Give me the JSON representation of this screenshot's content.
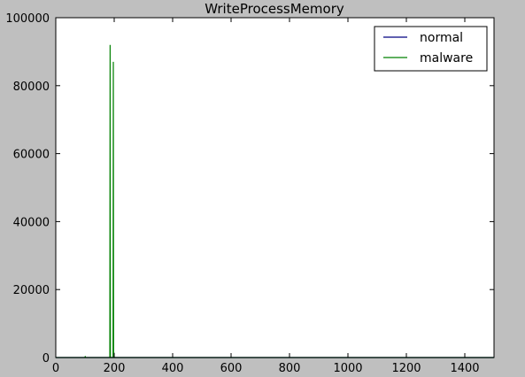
{
  "colors": {
    "background": "#bfbfbf",
    "plot_background": "#ffffff",
    "normal": "#000080",
    "malware": "#008000"
  },
  "chart_data": {
    "type": "line",
    "title": "WriteProcessMemory",
    "xlabel": "",
    "ylabel": "",
    "xlim": [
      0,
      1500
    ],
    "ylim": [
      0,
      100000
    ],
    "xticks": [
      0,
      200,
      400,
      600,
      800,
      1000,
      1200,
      1400
    ],
    "yticks": [
      0,
      20000,
      40000,
      60000,
      80000,
      100000
    ],
    "xtick_labels": [
      "0",
      "200",
      "400",
      "600",
      "800",
      "1000",
      "1200",
      "1400"
    ],
    "ytick_labels": [
      "0",
      "20000",
      "40000",
      "60000",
      "80000",
      "100000"
    ],
    "grid": false,
    "legend": {
      "position": "top-right",
      "entries": [
        "normal",
        "malware"
      ]
    },
    "series": [
      {
        "name": "normal",
        "color": "#000080",
        "x": [
          0,
          100,
          101,
          102,
          200,
          300,
          500,
          800,
          1000,
          1200,
          1300,
          1499
        ],
        "y": [
          0,
          0,
          150,
          0,
          0,
          0,
          0,
          0,
          0,
          0,
          0,
          0
        ]
      },
      {
        "name": "malware",
        "color": "#008000",
        "x": [
          0,
          100,
          101,
          102,
          185,
          186,
          187,
          188,
          196,
          197,
          198,
          199,
          200,
          210,
          300,
          600,
          900,
          1200,
          1499
        ],
        "y": [
          0,
          0,
          400,
          0,
          0,
          92000,
          0,
          0,
          0,
          87000,
          0,
          1500,
          0,
          0,
          0,
          0,
          0,
          0,
          0
        ]
      }
    ]
  }
}
